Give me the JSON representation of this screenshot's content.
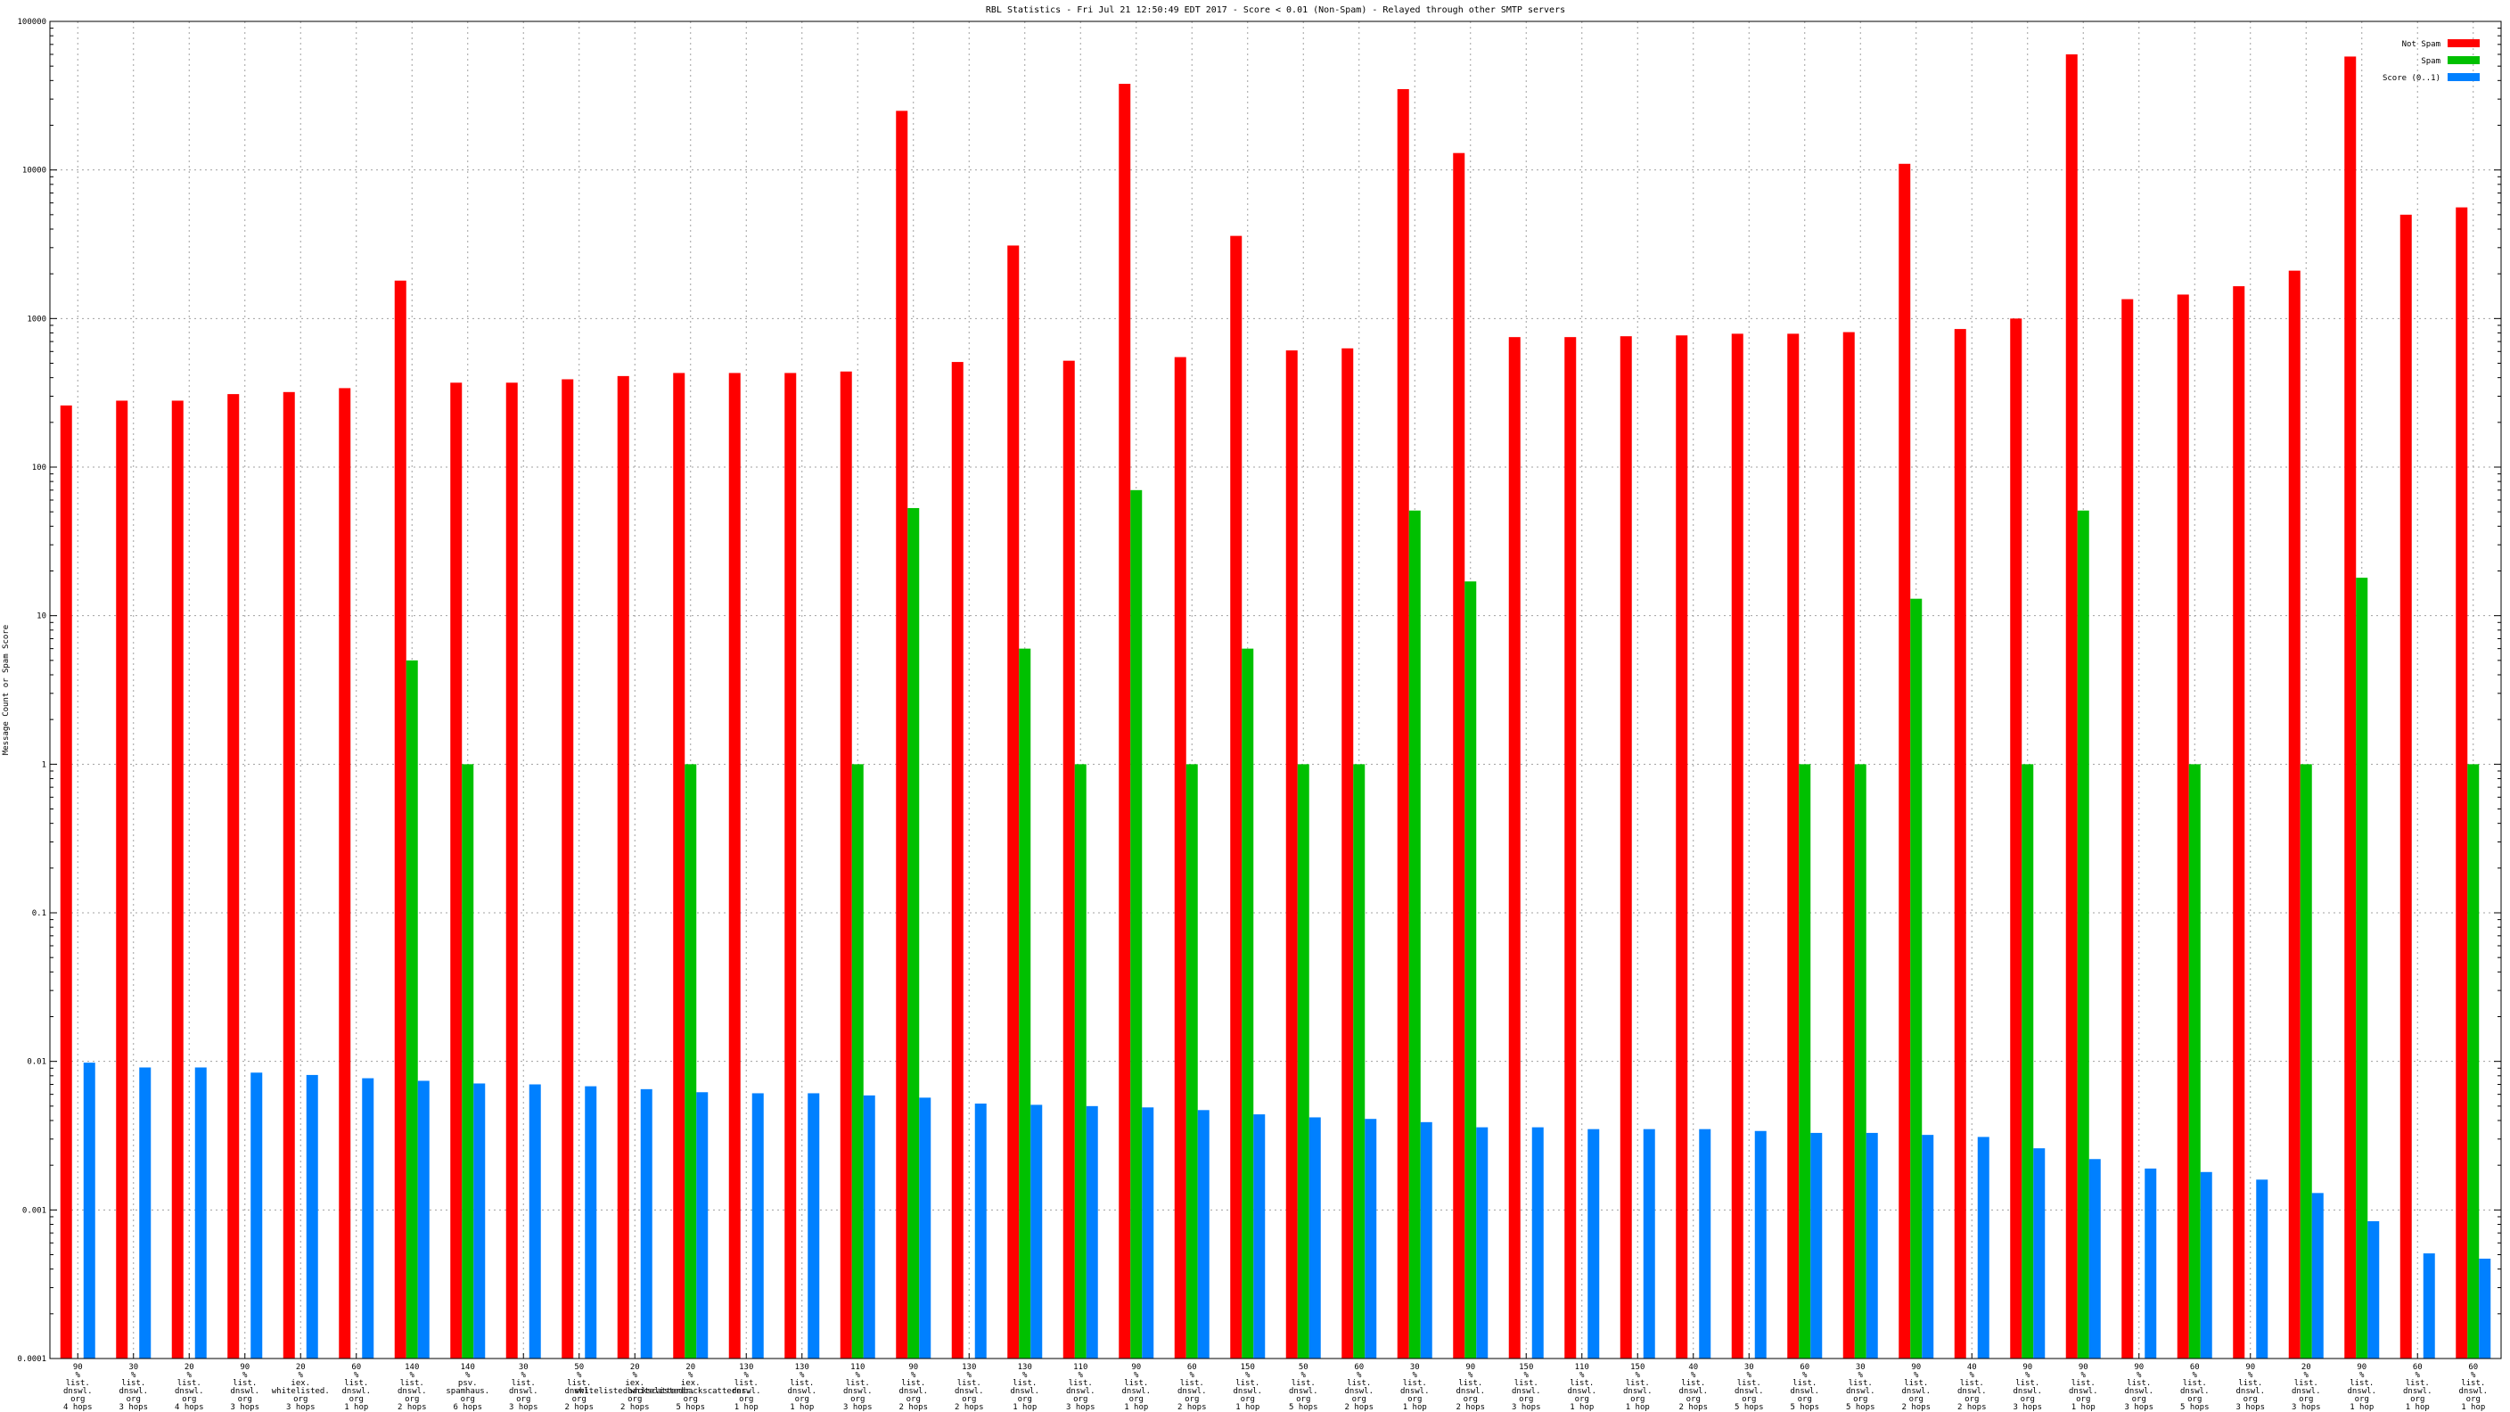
{
  "colors": {
    "not_spam": "#ff0000",
    "spam": "#00c000",
    "score": "#0080ff",
    "grid": "#a0a0a0",
    "axis": "#000000"
  },
  "chart_data": {
    "type": "bar",
    "title": "RBL Statistics - Fri Jul 21 12:50:49 EDT 2017 - Score < 0.01 (Non-Spam) - Relayed through other SMTP servers",
    "ylabel": "Message Count or Spam Score",
    "xlabel": "",
    "y_scale": "log",
    "ylim": [
      0.0001,
      100000
    ],
    "y_ticks": [
      "0.0001",
      "0.001",
      "0.01",
      "0.1",
      "1",
      "10",
      "100",
      "1000",
      "10000",
      "100000"
    ],
    "grid": true,
    "legend_position": "top-right",
    "categories": [
      [
        "90",
        "%",
        "list.",
        "dnswl.",
        "org",
        "4 hops"
      ],
      [
        "30",
        "%",
        "list.",
        "dnswl.",
        "org",
        "3 hops"
      ],
      [
        "20",
        "%",
        "list.",
        "dnswl.",
        "org",
        "4 hops"
      ],
      [
        "90",
        "%",
        "list.",
        "dnswl.",
        "org",
        "3 hops"
      ],
      [
        "20",
        "%",
        "iex.",
        "whitelisted.",
        "org",
        "3 hops"
      ],
      [
        "60",
        "%",
        "list.",
        "dnswl.",
        "org",
        "1 hop"
      ],
      [
        "140",
        "%",
        "list.",
        "dnswl.",
        "org",
        "2 hops"
      ],
      [
        "140",
        "%",
        "psv.",
        "spamhaus.",
        "org",
        "6 hops"
      ],
      [
        "30",
        "%",
        "list.",
        "dnswl.",
        "org",
        "3 hops"
      ],
      [
        "50",
        "%",
        "list.",
        "dnswl.",
        "org",
        "2 hops"
      ],
      [
        "20",
        "%",
        "iex.",
        "whitelistedbackscatterer.",
        "org",
        "2 hops"
      ],
      [
        "20",
        "%",
        "iex.",
        "whitelistedbackscatterer.",
        "org",
        "5 hops"
      ],
      [
        "130",
        "%",
        "list.",
        "dnswl.",
        "org",
        "1 hop"
      ],
      [
        "130",
        "%",
        "list.",
        "dnswl.",
        "org",
        "1 hop"
      ],
      [
        "110",
        "%",
        "list.",
        "dnswl.",
        "org",
        "3 hops"
      ],
      [
        "90",
        "%",
        "list.",
        "dnswl.",
        "org",
        "2 hops"
      ],
      [
        "130",
        "%",
        "list.",
        "dnswl.",
        "org",
        "2 hops"
      ],
      [
        "130",
        "%",
        "list.",
        "dnswl.",
        "org",
        "1 hop"
      ],
      [
        "110",
        "%",
        "list.",
        "dnswl.",
        "org",
        "3 hops"
      ],
      [
        "90",
        "%",
        "list.",
        "dnswl.",
        "org",
        "1 hop"
      ],
      [
        "60",
        "%",
        "list.",
        "dnswl.",
        "org",
        "2 hops"
      ],
      [
        "150",
        "%",
        "list.",
        "dnswl.",
        "org",
        "1 hop"
      ],
      [
        "50",
        "%",
        "list.",
        "dnswl.",
        "org",
        "5 hops"
      ],
      [
        "60",
        "%",
        "list.",
        "dnswl.",
        "org",
        "2 hops"
      ],
      [
        "30",
        "%",
        "list.",
        "dnswl.",
        "org",
        "1 hop"
      ],
      [
        "90",
        "%",
        "list.",
        "dnswl.",
        "org",
        "2 hops"
      ],
      [
        "150",
        "%",
        "list.",
        "dnswl.",
        "org",
        "3 hops"
      ],
      [
        "110",
        "%",
        "list.",
        "dnswl.",
        "org",
        "1 hop"
      ],
      [
        "150",
        "%",
        "list.",
        "dnswl.",
        "org",
        "1 hop"
      ],
      [
        "40",
        "%",
        "list.",
        "dnswl.",
        "org",
        "2 hops"
      ],
      [
        "30",
        "%",
        "list.",
        "dnswl.",
        "org",
        "5 hops"
      ],
      [
        "60",
        "%",
        "list.",
        "dnswl.",
        "org",
        "5 hops"
      ],
      [
        "30",
        "%",
        "list.",
        "dnswl.",
        "org",
        "5 hops"
      ],
      [
        "90",
        "%",
        "list.",
        "dnswl.",
        "org",
        "2 hops"
      ],
      [
        "40",
        "%",
        "list.",
        "dnswl.",
        "org",
        "2 hops"
      ],
      [
        "90",
        "%",
        "list.",
        "dnswl.",
        "org",
        "3 hops"
      ],
      [
        "90",
        "%",
        "list.",
        "dnswl.",
        "org",
        "1 hop"
      ],
      [
        "90",
        "%",
        "list.",
        "dnswl.",
        "org",
        "3 hops"
      ],
      [
        "60",
        "%",
        "list.",
        "dnswl.",
        "org",
        "5 hops"
      ],
      [
        "90",
        "%",
        "list.",
        "dnswl.",
        "org",
        "3 hops"
      ],
      [
        "20",
        "%",
        "list.",
        "dnswl.",
        "org",
        "3 hops"
      ],
      [
        "90",
        "%",
        "list.",
        "dnswl.",
        "org",
        "1 hop"
      ],
      [
        "60",
        "%",
        "list.",
        "dnswl.",
        "org",
        "1 hop"
      ],
      [
        "60",
        "%",
        "list.",
        "dnswl.",
        "org",
        "1 hop"
      ]
    ],
    "series": [
      {
        "name": "Not Spam",
        "color": "#ff0000",
        "values": [
          260,
          280,
          280,
          310,
          320,
          340,
          1800,
          370,
          370,
          390,
          410,
          430,
          430,
          430,
          440,
          25000,
          510,
          3100,
          520,
          38000,
          550,
          3600,
          610,
          630,
          35000,
          13000,
          750,
          750,
          760,
          770,
          790,
          790,
          810,
          11000,
          850,
          1000,
          60000,
          1350,
          1450,
          1650,
          2100,
          58000,
          5000,
          5600
        ]
      },
      {
        "name": "Spam",
        "color": "#00c000",
        "values": [
          null,
          null,
          null,
          null,
          null,
          null,
          5,
          1,
          null,
          null,
          null,
          1,
          null,
          null,
          1,
          53,
          null,
          6,
          1,
          70,
          1,
          6,
          1,
          1,
          51,
          17,
          null,
          null,
          null,
          null,
          null,
          1,
          1,
          13,
          null,
          1,
          51,
          null,
          1,
          null,
          1,
          18,
          null,
          1
        ]
      },
      {
        "name": "Score (0..1)",
        "color": "#0080ff",
        "values": [
          0.0098,
          0.0091,
          0.0091,
          0.0084,
          0.0081,
          0.0077,
          0.0074,
          0.0071,
          0.007,
          0.0068,
          0.0065,
          0.0062,
          0.0061,
          0.0061,
          0.0059,
          0.0057,
          0.0052,
          0.0051,
          0.005,
          0.0049,
          0.0047,
          0.0044,
          0.0042,
          0.0041,
          0.0039,
          0.0036,
          0.0036,
          0.0035,
          0.0035,
          0.0035,
          0.0034,
          0.0033,
          0.0033,
          0.0032,
          0.0031,
          0.0026,
          0.0022,
          0.0019,
          0.0018,
          0.0016,
          0.0013,
          0.00084,
          0.00051,
          0.00047
        ]
      }
    ]
  }
}
